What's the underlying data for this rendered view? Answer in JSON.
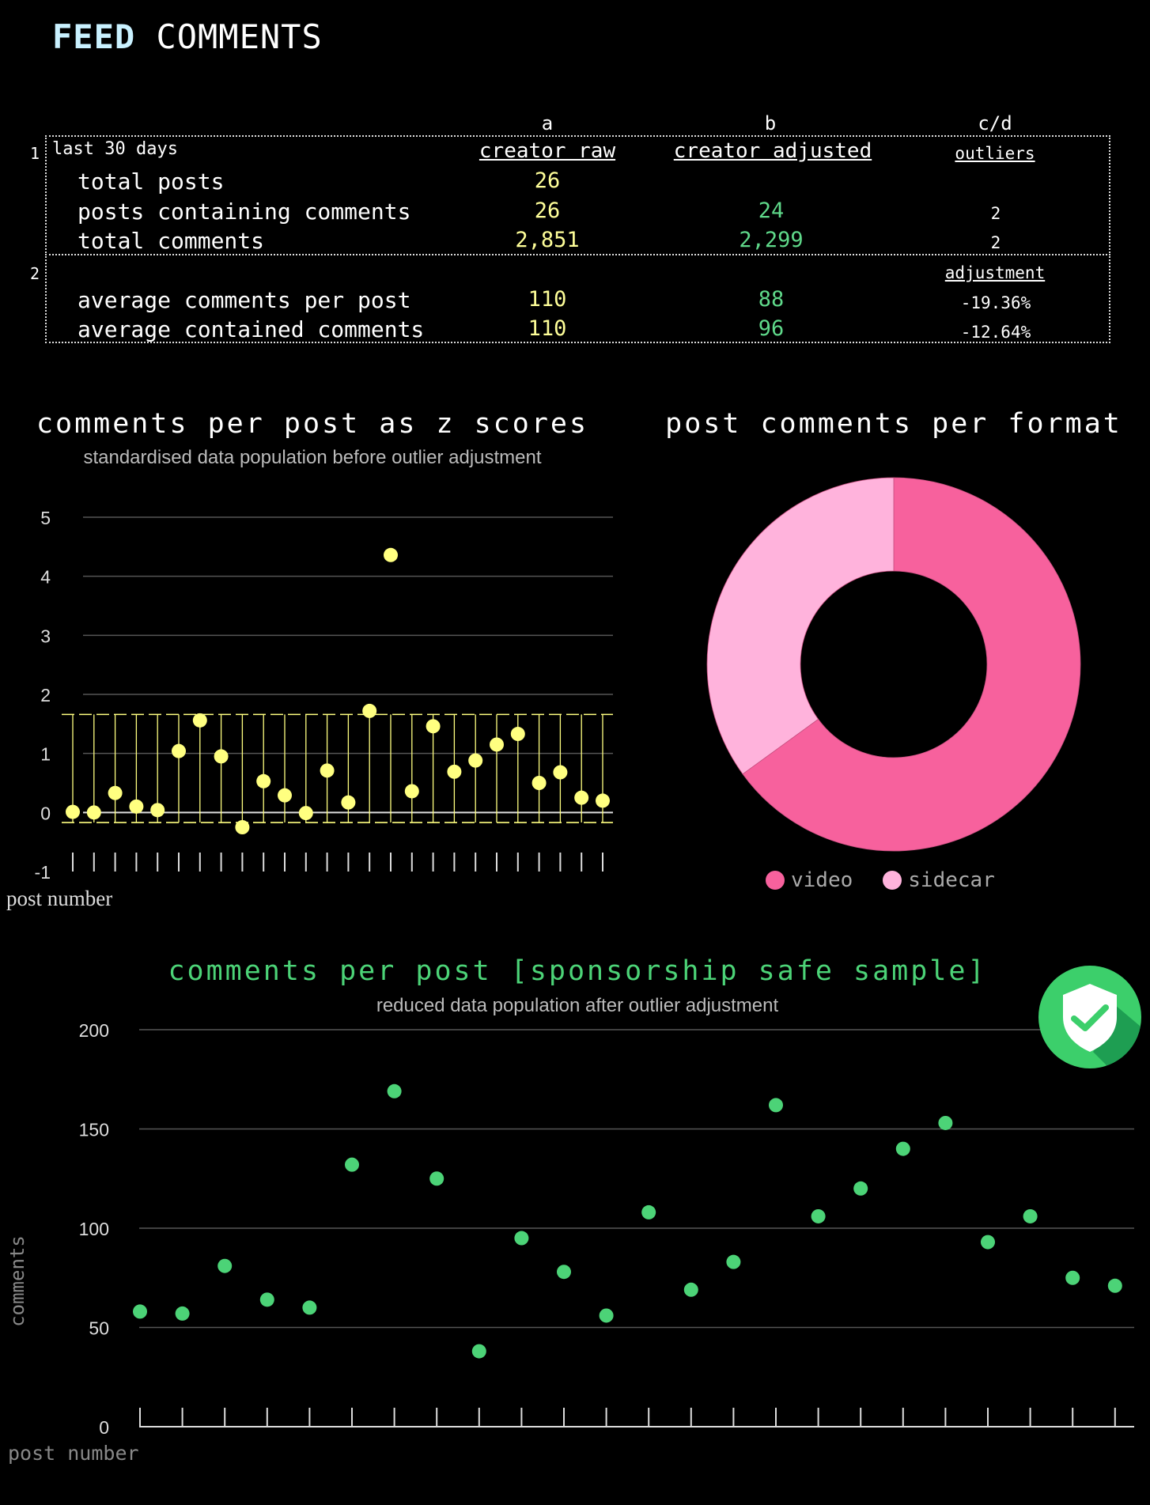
{
  "header": {
    "word1": "FEED",
    "word2": "COMMENTS"
  },
  "table": {
    "columns": [
      {
        "letter": "a",
        "label": "creator raw"
      },
      {
        "letter": "b",
        "label": "creator adjusted"
      },
      {
        "letter": "c/d",
        "label": "outliers"
      }
    ],
    "box1": {
      "number": "1",
      "period": "last 30 days",
      "rows": [
        {
          "label": "total posts",
          "raw": "26",
          "adjusted": "",
          "outliers": ""
        },
        {
          "label": "posts containing comments",
          "raw": "26",
          "adjusted": "24",
          "outliers": "2"
        },
        {
          "label": "total comments",
          "raw": "2,851",
          "adjusted": "2,299",
          "outliers": "2"
        }
      ]
    },
    "box2": {
      "number": "2",
      "adjustment_label": "adjustment",
      "rows": [
        {
          "label": "average comments per post",
          "raw": "110",
          "adjusted": "88",
          "adjustment": "-19.36%"
        },
        {
          "label": "average contained comments",
          "raw": "110",
          "adjusted": "96",
          "adjustment": "-12.64%"
        }
      ]
    }
  },
  "colors": {
    "yellow": "#ffff80",
    "green": "#4cd377",
    "video": "#f7619d",
    "sidecar": "#ffb3dc"
  },
  "chart_data": [
    {
      "type": "scatter",
      "title": "comments per post as z scores",
      "subtitle": "standardised data population before outlier adjustment",
      "xlabel": "post number",
      "ylabel": "",
      "ylim": [
        -1,
        5
      ],
      "yticks": [
        "-1",
        "0",
        "1",
        "2",
        "3",
        "4",
        "5"
      ],
      "band": [
        -0.17,
        1.66
      ],
      "grid": true,
      "series": [
        {
          "values": [
            0.01,
            0.0,
            0.33,
            0.1,
            0.04,
            1.04,
            1.56,
            0.95,
            -0.25,
            0.53,
            0.29,
            -0.01,
            0.71,
            0.17,
            1.72,
            4.36,
            0.36,
            1.46,
            0.69,
            0.88,
            1.15,
            1.33,
            0.5,
            0.68,
            0.25,
            0.2
          ]
        }
      ]
    },
    {
      "type": "pie",
      "title": "post comments per format",
      "labels": [
        "video",
        "sidecar"
      ],
      "values": [
        65,
        35
      ],
      "legend": "bottom"
    },
    {
      "type": "scatter",
      "title": "comments per post [sponsorship safe sample]",
      "subtitle": "reduced data population after outlier adjustment",
      "xlabel": "post number",
      "ylabel": "comments",
      "ylim": [
        0,
        200
      ],
      "yticks": [
        "0",
        "50",
        "100",
        "150",
        "200"
      ],
      "grid": true,
      "series": [
        {
          "values": [
            58,
            57,
            81,
            64,
            60,
            132,
            169,
            125,
            38,
            95,
            78,
            56,
            108,
            69,
            83,
            162,
            106,
            120,
            140,
            153,
            93,
            106,
            75,
            71
          ]
        }
      ]
    }
  ]
}
